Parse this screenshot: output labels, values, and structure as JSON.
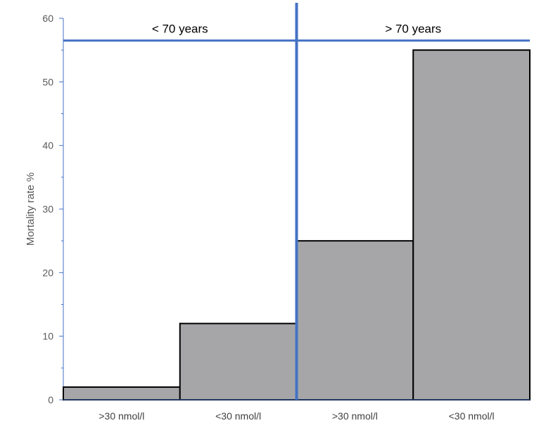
{
  "chart_data": {
    "type": "bar",
    "title": "",
    "xlabel": "",
    "ylabel": "Mortality rate %",
    "ylim": [
      0,
      60
    ],
    "yticks": [
      0,
      10,
      20,
      30,
      40,
      50,
      60
    ],
    "categories": [
      ">30 nmol/l",
      "<30 nmol/l",
      ">30 nmol/l",
      "<30 nmol/l"
    ],
    "values": [
      2,
      12,
      25,
      55
    ],
    "groups": [
      {
        "label": "< 70 years",
        "category_indices": [
          0,
          1
        ]
      },
      {
        "label": "> 70 years",
        "category_indices": [
          2,
          3
        ]
      }
    ],
    "group_line_level": 56.5,
    "grid": false,
    "legend": "none"
  },
  "colors": {
    "bar_fill": "#a6a6a8",
    "bar_stroke": "#000000",
    "divider": "#4472c4",
    "axis": "#4472c4"
  }
}
